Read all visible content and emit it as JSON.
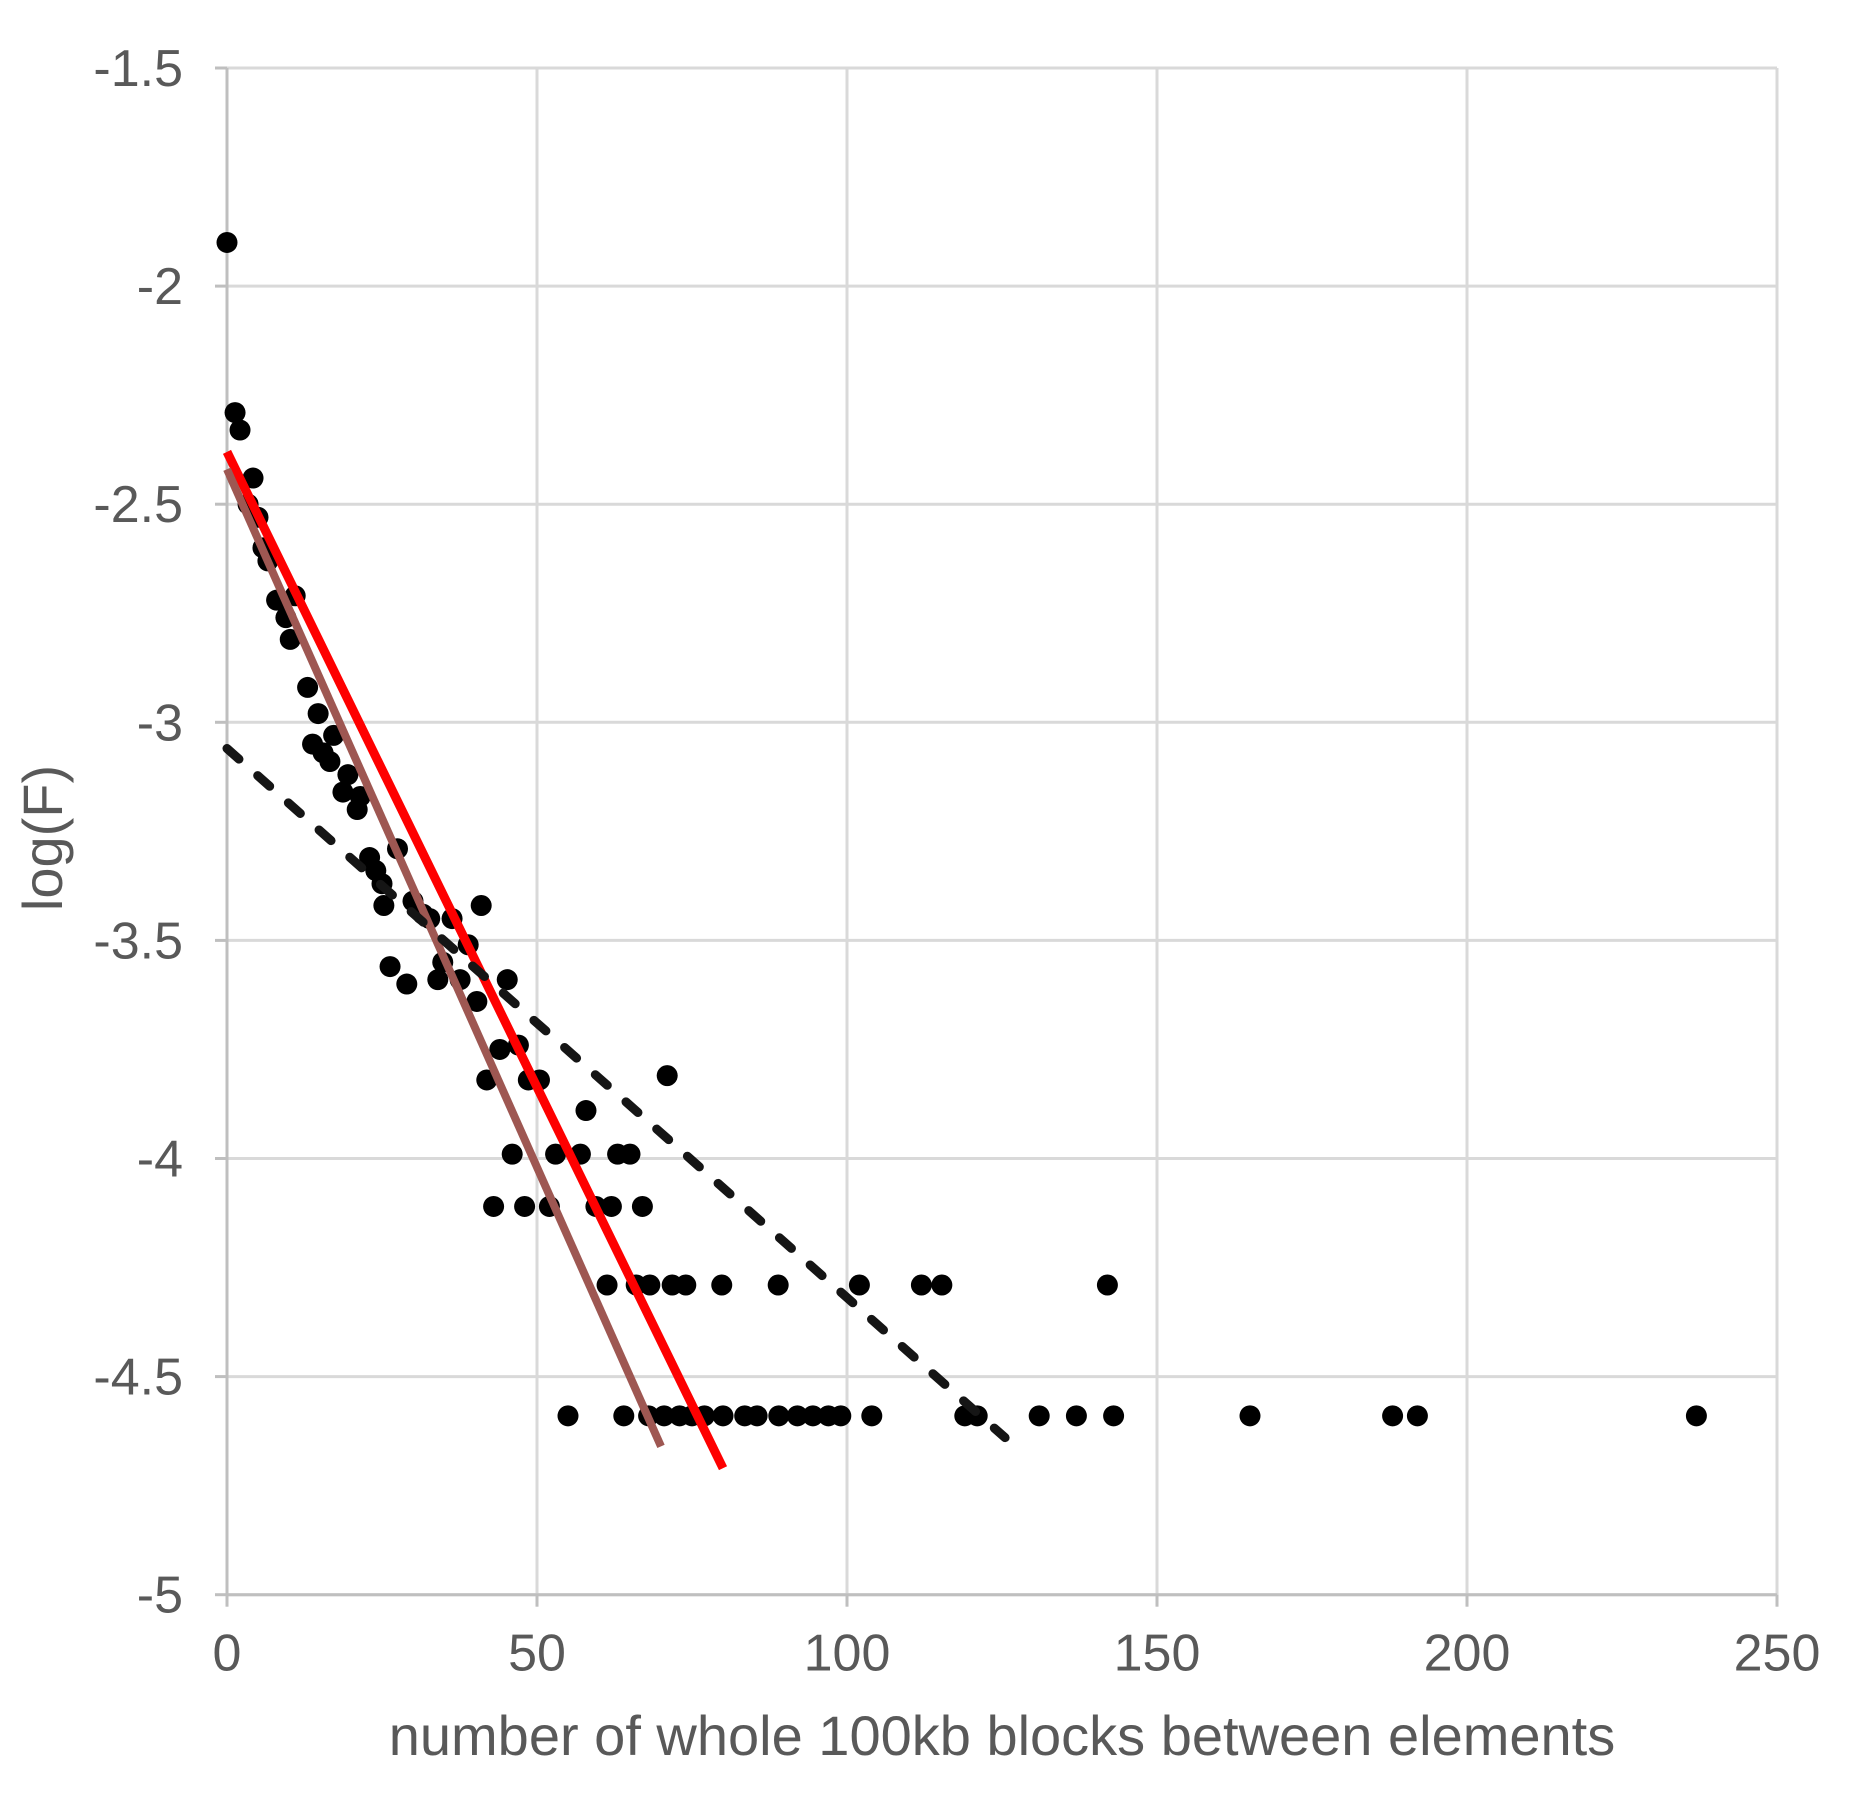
{
  "figure": {
    "background": "#ffffff"
  },
  "chart_data": {
    "type": "scatter",
    "title": "",
    "xlabel": "number of whole 100kb blocks between elements",
    "ylabel": "log(F)",
    "xlim": [
      0,
      250
    ],
    "ylim": [
      -5,
      -1.5
    ],
    "xticks": [
      0,
      50,
      100,
      150,
      200,
      250
    ],
    "xticklabels": [
      "0",
      "50",
      "100",
      "150",
      "200",
      "250"
    ],
    "yticks": [
      -1.5,
      -2,
      -2.5,
      -3,
      -3.5,
      -4,
      -4.5,
      -5
    ],
    "yticklabels": [
      "-1.5",
      "-2",
      "-2.5",
      "-3",
      "-3.5",
      "-4",
      "-4.5",
      "-5"
    ],
    "grid": true,
    "legend_position": "none",
    "colors": {
      "points": "#000000",
      "gridline": "#d9d9d9",
      "axis_line": "#bfbfbf",
      "tick_label": "#595959",
      "axis_title": "#595959",
      "regression_red": "#fe0000",
      "regression_dark_red": "#9e5752",
      "regression_dashed": "#151515"
    },
    "points": [
      [
        0,
        -1.9
      ],
      [
        1.3,
        -2.29
      ],
      [
        2.1,
        -2.33
      ],
      [
        3.4,
        -2.5
      ],
      [
        4.2,
        -2.44
      ],
      [
        5.0,
        -2.53
      ],
      [
        5.8,
        -2.6
      ],
      [
        6.6,
        -2.63
      ],
      [
        8.0,
        -2.72
      ],
      [
        11.0,
        -2.71
      ],
      [
        9.5,
        -2.76
      ],
      [
        10.2,
        -2.81
      ],
      [
        13.0,
        -2.92
      ],
      [
        14.7,
        -2.98
      ],
      [
        17.2,
        -3.03
      ],
      [
        13.8,
        -3.05
      ],
      [
        15.5,
        -3.07
      ],
      [
        16.6,
        -3.09
      ],
      [
        19.5,
        -3.12
      ],
      [
        18.7,
        -3.16
      ],
      [
        21.5,
        -3.17
      ],
      [
        21.0,
        -3.2
      ],
      [
        23.0,
        -3.31
      ],
      [
        24.0,
        -3.34
      ],
      [
        25.0,
        -3.37
      ],
      [
        27.5,
        -3.29
      ],
      [
        25.3,
        -3.42
      ],
      [
        30.0,
        -3.41
      ],
      [
        31.6,
        -3.44
      ],
      [
        32.7,
        -3.45
      ],
      [
        36.3,
        -3.45
      ],
      [
        41.0,
        -3.42
      ],
      [
        38.9,
        -3.51
      ],
      [
        26.3,
        -3.56
      ],
      [
        29.0,
        -3.6
      ],
      [
        34.0,
        -3.59
      ],
      [
        34.8,
        -3.55
      ],
      [
        37.6,
        -3.59
      ],
      [
        45.2,
        -3.59
      ],
      [
        40.3,
        -3.64
      ],
      [
        44.0,
        -3.75
      ],
      [
        47.0,
        -3.74
      ],
      [
        41.9,
        -3.82
      ],
      [
        48.6,
        -3.82
      ],
      [
        50.4,
        -3.82
      ],
      [
        71.0,
        -3.81
      ],
      [
        57.9,
        -3.89
      ],
      [
        46,
        -3.99
      ],
      [
        53,
        -3.99
      ],
      [
        57,
        -3.99
      ],
      [
        63,
        -3.99
      ],
      [
        65,
        -3.99
      ],
      [
        43,
        -4.11
      ],
      [
        48,
        -4.11
      ],
      [
        52,
        -4.11
      ],
      [
        59.5,
        -4.11
      ],
      [
        62,
        -4.11
      ],
      [
        67,
        -4.11
      ],
      [
        61.3,
        -4.29
      ],
      [
        66,
        -4.29
      ],
      [
        68.2,
        -4.29
      ],
      [
        71.8,
        -4.29
      ],
      [
        74,
        -4.29
      ],
      [
        79.8,
        -4.29
      ],
      [
        88.9,
        -4.29
      ],
      [
        102,
        -4.29
      ],
      [
        112,
        -4.29
      ],
      [
        115.3,
        -4.29
      ],
      [
        142,
        -4.29
      ],
      [
        55,
        -4.59
      ],
      [
        64,
        -4.59
      ],
      [
        68,
        -4.59
      ],
      [
        70.5,
        -4.59
      ],
      [
        73,
        -4.59
      ],
      [
        75,
        -4.59
      ],
      [
        77,
        -4.59
      ],
      [
        80,
        -4.59
      ],
      [
        83.5,
        -4.59
      ],
      [
        85.5,
        -4.59
      ],
      [
        89,
        -4.59
      ],
      [
        92,
        -4.59
      ],
      [
        94.5,
        -4.59
      ],
      [
        97,
        -4.59
      ],
      [
        99,
        -4.59
      ],
      [
        104,
        -4.59
      ],
      [
        119,
        -4.59
      ],
      [
        121,
        -4.59
      ],
      [
        131,
        -4.59
      ],
      [
        137,
        -4.59
      ],
      [
        143,
        -4.59
      ],
      [
        165,
        -4.59
      ],
      [
        188,
        -4.59
      ],
      [
        192,
        -4.59
      ],
      [
        237,
        -4.59
      ]
    ],
    "trendlines": [
      {
        "name": "red-regression-line",
        "style": "solid",
        "color_key": "regression_red",
        "width": 9,
        "start": [
          0,
          -2.38
        ],
        "end": [
          80,
          -4.71
        ]
      },
      {
        "name": "dark-red-regression-line",
        "style": "solid",
        "color_key": "regression_dark_red",
        "width": 8,
        "start": [
          0,
          -2.42
        ],
        "end": [
          70,
          -4.66
        ]
      },
      {
        "name": "dashed-regression-line",
        "style": "dashed",
        "color_key": "regression_dashed",
        "width": 9,
        "start": [
          0,
          -3.06
        ],
        "end": [
          125.5,
          -4.64
        ]
      }
    ]
  }
}
